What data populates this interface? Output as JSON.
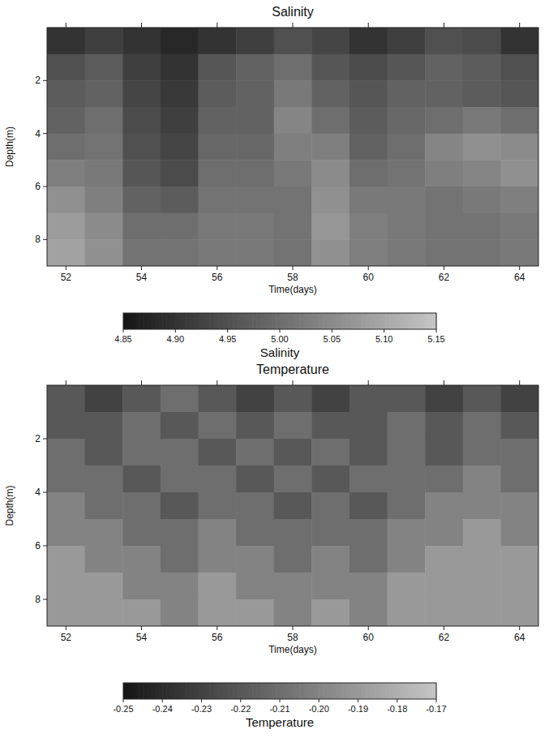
{
  "chart_data": [
    {
      "type": "heatmap",
      "title": "Salinity",
      "x_label": "Time(days)",
      "y_label": "Depth(m)",
      "x": [
        52,
        53,
        54,
        55,
        56,
        57,
        58,
        59,
        60,
        61,
        62,
        63,
        64
      ],
      "y": [
        0.5,
        1.5,
        2.5,
        3.5,
        4.5,
        5.5,
        6.5,
        7.5,
        8.5
      ],
      "cells": [
        [
          4.9,
          4.92,
          4.9,
          4.88,
          4.9,
          4.92,
          4.95,
          4.93,
          4.9,
          4.92,
          4.95,
          4.94,
          4.9
        ],
        [
          4.95,
          4.97,
          4.92,
          4.9,
          4.96,
          4.98,
          5.0,
          4.96,
          4.94,
          4.96,
          4.98,
          4.97,
          4.95
        ],
        [
          4.97,
          4.98,
          4.93,
          4.91,
          4.97,
          4.98,
          5.02,
          4.98,
          4.96,
          4.98,
          4.98,
          4.97,
          4.96
        ],
        [
          4.98,
          5.0,
          4.94,
          4.92,
          4.98,
          4.98,
          5.04,
          5.0,
          4.97,
          4.99,
          5.0,
          5.02,
          5.0
        ],
        [
          5.0,
          5.01,
          4.95,
          4.93,
          4.99,
          4.99,
          5.03,
          5.03,
          4.98,
          5.0,
          5.04,
          5.06,
          5.05
        ],
        [
          5.03,
          5.02,
          4.96,
          4.94,
          5.0,
          5.0,
          5.02,
          5.05,
          5.0,
          5.01,
          5.03,
          5.04,
          5.06
        ],
        [
          5.06,
          5.03,
          4.98,
          4.97,
          5.01,
          5.01,
          5.01,
          5.06,
          5.02,
          5.02,
          5.01,
          5.02,
          5.03
        ],
        [
          5.08,
          5.05,
          5.0,
          5.0,
          5.02,
          5.02,
          5.01,
          5.07,
          5.03,
          5.02,
          5.01,
          5.01,
          5.02
        ],
        [
          5.09,
          5.06,
          5.01,
          5.01,
          5.02,
          5.02,
          5.01,
          5.06,
          5.03,
          5.02,
          5.01,
          5.01,
          5.02
        ]
      ],
      "xlim": [
        51.5,
        64.5
      ],
      "ylim": [
        9,
        0
      ],
      "xticks": [
        52,
        54,
        56,
        58,
        60,
        62,
        64
      ],
      "yticks": [
        2,
        4,
        6,
        8
      ],
      "colorbar": {
        "label": "Salinity",
        "range": [
          4.85,
          5.15
        ],
        "ticks": [
          4.85,
          {
            "value": 4.9,
            "label": "4.90"
          },
          4.95,
          {
            "value": 5.0,
            "label": "5.00"
          },
          5.05,
          {
            "value": 5.1,
            "label": "5.10"
          },
          5.15
        ]
      }
    },
    {
      "type": "heatmap",
      "title": "Temperature",
      "x_label": "Time(days)",
      "y_label": "Depth(m)",
      "x": [
        52,
        53,
        54,
        55,
        56,
        57,
        58,
        59,
        60,
        61,
        62,
        63,
        64
      ],
      "y": [
        0.5,
        1.5,
        2.5,
        3.5,
        4.5,
        5.5,
        6.5,
        7.5,
        8.5
      ],
      "cells": [
        [
          -0.22,
          -0.23,
          -0.22,
          -0.21,
          -0.22,
          -0.23,
          -0.22,
          -0.23,
          -0.22,
          -0.22,
          -0.23,
          -0.22,
          -0.23
        ],
        [
          -0.22,
          -0.22,
          -0.21,
          -0.22,
          -0.21,
          -0.22,
          -0.21,
          -0.22,
          -0.22,
          -0.21,
          -0.22,
          -0.21,
          -0.22
        ],
        [
          -0.21,
          -0.22,
          -0.21,
          -0.21,
          -0.22,
          -0.21,
          -0.22,
          -0.21,
          -0.22,
          -0.21,
          -0.22,
          -0.21,
          -0.21
        ],
        [
          -0.21,
          -0.21,
          -0.22,
          -0.21,
          -0.21,
          -0.22,
          -0.21,
          -0.22,
          -0.21,
          -0.21,
          -0.21,
          -0.2,
          -0.21
        ],
        [
          -0.2,
          -0.21,
          -0.21,
          -0.22,
          -0.21,
          -0.21,
          -0.22,
          -0.21,
          -0.22,
          -0.21,
          -0.2,
          -0.2,
          -0.2
        ],
        [
          -0.2,
          -0.2,
          -0.21,
          -0.21,
          -0.2,
          -0.21,
          -0.21,
          -0.21,
          -0.21,
          -0.2,
          -0.2,
          -0.19,
          -0.2
        ],
        [
          -0.19,
          -0.2,
          -0.2,
          -0.21,
          -0.2,
          -0.2,
          -0.21,
          -0.2,
          -0.21,
          -0.2,
          -0.19,
          -0.19,
          -0.19
        ],
        [
          -0.19,
          -0.19,
          -0.2,
          -0.2,
          -0.19,
          -0.2,
          -0.2,
          -0.2,
          -0.2,
          -0.19,
          -0.19,
          -0.19,
          -0.19
        ],
        [
          -0.19,
          -0.19,
          -0.19,
          -0.2,
          -0.19,
          -0.19,
          -0.2,
          -0.19,
          -0.2,
          -0.19,
          -0.19,
          -0.19,
          -0.19
        ]
      ],
      "xlim": [
        51.5,
        64.5
      ],
      "ylim": [
        9,
        0
      ],
      "xticks": [
        52,
        54,
        56,
        58,
        60,
        62,
        64
      ],
      "yticks": [
        2,
        4,
        6,
        8
      ],
      "colorbar": {
        "label": "Temperature",
        "range": [
          -0.25,
          -0.17
        ],
        "ticks": [
          -0.25,
          -0.24,
          -0.23,
          -0.22,
          -0.21,
          {
            "value": -0.2,
            "label": "-0.20"
          },
          -0.19,
          -0.18,
          -0.17
        ]
      }
    }
  ]
}
